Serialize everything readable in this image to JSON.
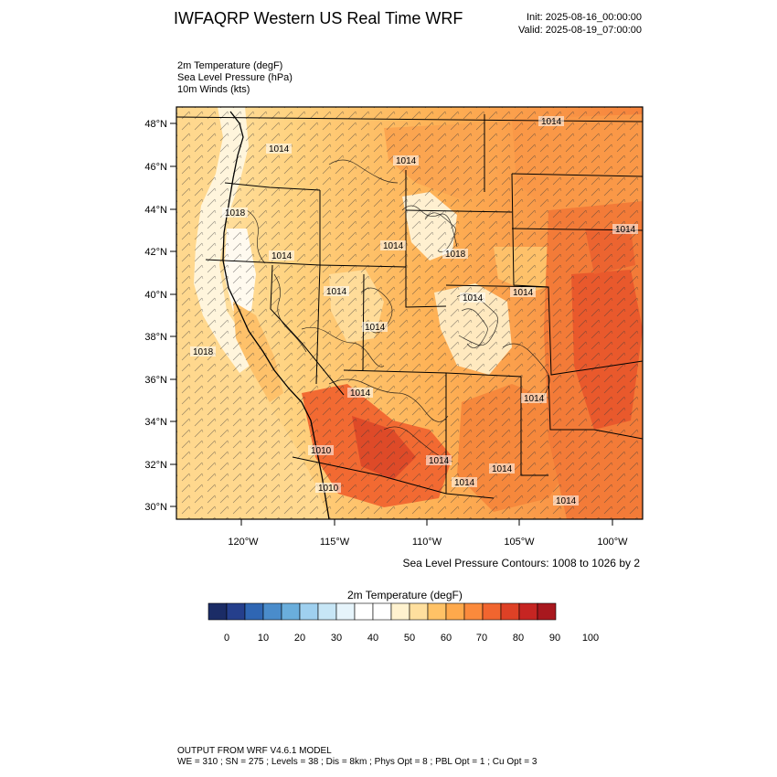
{
  "header": {
    "title": "IWFAQRP Western US Real Time WRF",
    "init": "Init: 2025-08-16_00:00:00",
    "valid": "Valid: 2025-08-19_07:00:00"
  },
  "fields": [
    "2m Temperature   (degF)",
    "Sea Level Pressure   (hPa)",
    "10m Winds   (kts)"
  ],
  "map": {
    "lat_labels": [
      "48°N",
      "46°N",
      "44°N",
      "42°N",
      "40°N",
      "38°N",
      "36°N",
      "34°N",
      "32°N",
      "30°N"
    ],
    "lon_labels": [
      "120°W",
      "115°W",
      "110°W",
      "105°W",
      "100°W"
    ],
    "pressure_labels": [
      "1014",
      "1014",
      "1014",
      "1018",
      "1014",
      "1014",
      "1014",
      "1018",
      "1014",
      "1014",
      "1014",
      "1018",
      "1014",
      "1014",
      "1010",
      "1014",
      "1010",
      "1014",
      "1014",
      "1014",
      "1014"
    ],
    "contour_note": "Sea Level Pressure Contours: 1008 to 1026 by 2"
  },
  "colorbar": {
    "title": "2m Temperature  (degF)",
    "colors": [
      "#1b2c66",
      "#253f8c",
      "#2f66b3",
      "#4a8ccb",
      "#6aaedc",
      "#9fd0ef",
      "#c7e6f6",
      "#e6f4fb",
      "#ffffff",
      "#ffffff",
      "#fff2cf",
      "#ffdf9e",
      "#ffc266",
      "#fea94c",
      "#fb8a3c",
      "#f1652f",
      "#de4126",
      "#c62522",
      "#a8181e"
    ],
    "tick_labels": [
      "0",
      "10",
      "20",
      "30",
      "40",
      "50",
      "60",
      "70",
      "80",
      "90",
      "100"
    ]
  },
  "footer": {
    "line1": "OUTPUT FROM WRF V4.6.1 MODEL",
    "line2": "WE = 310 ; SN = 275 ; Levels = 38 ; Dis = 8km ; Phys Opt = 8 ; PBL Opt = 1 ; Cu Opt = 3"
  }
}
